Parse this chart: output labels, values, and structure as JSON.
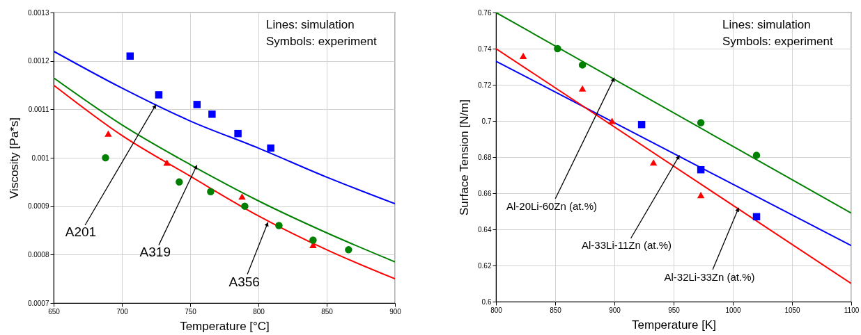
{
  "chart_data": [
    {
      "type": "line",
      "xlabel": "Temperature [°C]",
      "ylabel": "Viscosity [Pa*s]",
      "xlim": [
        650,
        900
      ],
      "ylim": [
        0.0007,
        0.0013
      ],
      "xticks": [
        650,
        700,
        750,
        800,
        850,
        900
      ],
      "yticks": [
        0.0007,
        0.0008,
        0.0009,
        0.001,
        0.0011,
        0.0012,
        0.0013
      ],
      "grid": true,
      "annotations": [
        "Lines: simulation",
        "Symbols: experiment",
        {
          "text": "A201",
          "x": 725,
          "y": 0.00111
        },
        {
          "text": "A319",
          "x": 755,
          "y": 0.000985
        },
        {
          "text": "A356",
          "x": 807,
          "y": 0.000867
        }
      ],
      "series": [
        {
          "type": "line",
          "color": "#0000ff",
          "x": [
            650,
            700,
            750,
            800,
            850,
            900
          ],
          "values": [
            0.00122,
            0.001144,
            0.001076,
            0.00102,
            0.00096,
            0.000905
          ]
        },
        {
          "type": "line",
          "color": "#008000",
          "x": [
            650,
            700,
            750,
            800,
            850,
            900
          ],
          "values": [
            0.001165,
            0.001068,
            0.000986,
            0.000911,
            0.000845,
            0.000785
          ]
        },
        {
          "type": "line",
          "color": "#ff0000",
          "x": [
            650,
            700,
            750,
            800,
            850,
            900
          ],
          "values": [
            0.00115,
            0.001046,
            0.000962,
            0.00088,
            0.00081,
            0.00075
          ]
        },
        {
          "type": "scatter",
          "marker": "square",
          "color": "#0000ff",
          "x": [
            706,
            727,
            755,
            766,
            785,
            809
          ],
          "values": [
            0.00121,
            0.00113,
            0.00111,
            0.00109,
            0.00105,
            0.00102
          ]
        },
        {
          "type": "scatter",
          "marker": "triangle",
          "color": "#ff0000",
          "x": [
            690,
            733,
            788,
            840
          ],
          "values": [
            0.00105,
            0.00099,
            0.00092,
            0.00082
          ]
        },
        {
          "type": "scatter",
          "marker": "circle",
          "color": "#008000",
          "x": [
            688,
            742,
            765,
            790,
            815,
            840,
            866
          ],
          "values": [
            0.001,
            0.00095,
            0.00093,
            0.0009,
            0.00086,
            0.00083,
            0.00081
          ]
        }
      ]
    },
    {
      "type": "line",
      "xlabel": "Temperature [K]",
      "ylabel": "Surface Tension [N/m]",
      "xlim": [
        800,
        1100
      ],
      "ylim": [
        0.6,
        0.76
      ],
      "xticks": [
        800,
        850,
        900,
        950,
        1000,
        1050,
        1100
      ],
      "yticks": [
        0.6,
        0.62,
        0.64,
        0.66,
        0.68,
        0.7,
        0.72,
        0.74,
        0.76
      ],
      "grid": true,
      "annotations": [
        "Lines: simulation",
        "Symbols: experiment",
        {
          "text": "Al-20Li-60Zn (at.%)",
          "x": 900,
          "y": 0.724
        },
        {
          "text": "Al-33Li-11Zn (at.%)",
          "x": 955,
          "y": 0.681
        },
        {
          "text": "Al-32Li-33Zn (at.%)",
          "x": 1005,
          "y": 0.652
        }
      ],
      "series": [
        {
          "type": "line",
          "color": "#008000",
          "x": [
            800,
            1100
          ],
          "values": [
            0.76,
            0.649
          ]
        },
        {
          "type": "line",
          "color": "#0000ff",
          "x": [
            800,
            1100
          ],
          "values": [
            0.733,
            0.631
          ]
        },
        {
          "type": "line",
          "color": "#ff0000",
          "x": [
            800,
            1100
          ],
          "values": [
            0.74,
            0.61
          ]
        },
        {
          "type": "scatter",
          "marker": "circle",
          "color": "#008000",
          "x": [
            852,
            873,
            973,
            1020
          ],
          "values": [
            0.74,
            0.731,
            0.699,
            0.681
          ]
        },
        {
          "type": "scatter",
          "marker": "triangle",
          "color": "#ff0000",
          "x": [
            823,
            873,
            898,
            933,
            973
          ],
          "values": [
            0.736,
            0.718,
            0.7,
            0.677,
            0.659
          ]
        },
        {
          "type": "scatter",
          "marker": "square",
          "color": "#0000ff",
          "x": [
            923,
            973,
            1020
          ],
          "values": [
            0.698,
            0.673,
            0.647
          ]
        }
      ]
    }
  ]
}
